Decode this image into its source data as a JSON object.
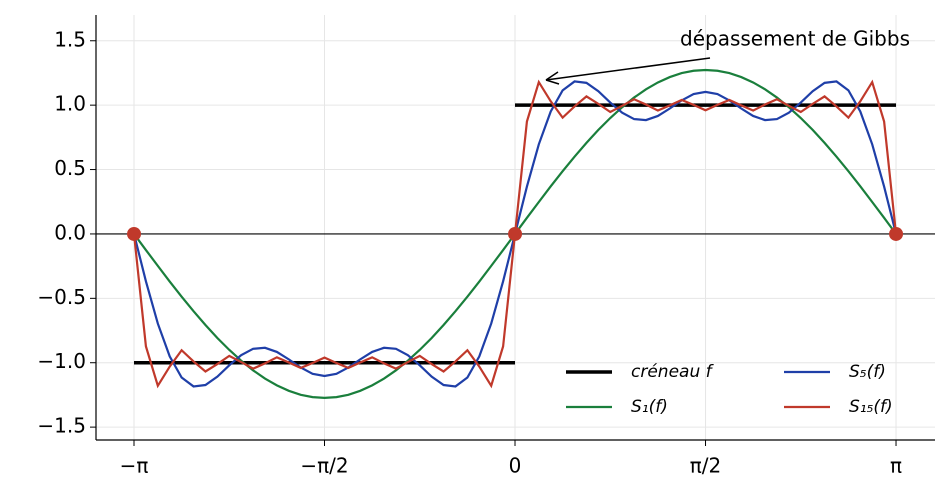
{
  "chart_data": {
    "type": "line",
    "x": [
      -3.1416,
      -3.0434,
      -2.9452,
      -2.8471,
      -2.7489,
      -2.6507,
      -2.5525,
      -2.4544,
      -2.3562,
      -2.258,
      -2.1598,
      -2.0617,
      -1.9635,
      -1.8653,
      -1.7671,
      -1.669,
      -1.5708,
      -1.4726,
      -1.3744,
      -1.2763,
      -1.1781,
      -1.0799,
      -0.9817,
      -0.8836,
      -0.7854,
      -0.6872,
      -0.589,
      -0.4909,
      -0.3927,
      -0.2945,
      -0.1963,
      -0.0982,
      0,
      0.0982,
      0.1963,
      0.2945,
      0.3927,
      0.4909,
      0.589,
      0.6872,
      0.7854,
      0.8836,
      0.9817,
      1.0799,
      1.1781,
      1.2763,
      1.3744,
      1.4726,
      1.5708,
      1.669,
      1.7671,
      1.8653,
      1.9635,
      2.0617,
      2.1598,
      2.258,
      2.3562,
      2.4544,
      2.5525,
      2.6507,
      2.7489,
      2.8471,
      2.9452,
      3.0434,
      3.1416
    ],
    "series": [
      {
        "name": "créneau f",
        "color": "#000000",
        "x": [
          -3.1416,
          0,
          0,
          0,
          3.1416
        ],
        "values": [
          -1,
          -1,
          null,
          1,
          1
        ]
      },
      {
        "name": "S₁(f)",
        "color": "#1a7f3c",
        "values": [
          0,
          -0.125,
          -0.248,
          -0.37,
          -0.487,
          -0.6,
          -0.707,
          -0.808,
          -0.9,
          -0.984,
          -1.059,
          -1.123,
          -1.176,
          -1.218,
          -1.249,
          -1.267,
          -1.273,
          -1.267,
          -1.249,
          -1.218,
          -1.176,
          -1.123,
          -1.059,
          -0.984,
          -0.9,
          -0.808,
          -0.707,
          -0.6,
          -0.487,
          -0.37,
          -0.248,
          -0.125,
          0,
          0.125,
          0.248,
          0.37,
          0.487,
          0.6,
          0.707,
          0.808,
          0.9,
          0.984,
          1.059,
          1.123,
          1.176,
          1.218,
          1.249,
          1.267,
          1.273,
          1.267,
          1.249,
          1.218,
          1.176,
          1.123,
          1.059,
          0.984,
          0.9,
          0.808,
          0.707,
          0.6,
          0.487,
          0.37,
          0.248,
          0.125,
          0
        ]
      },
      {
        "name": "S₅(f)",
        "color": "#1f3fa8",
        "values": [
          0,
          -0.368,
          -0.696,
          -0.951,
          -1.115,
          -1.184,
          -1.173,
          -1.108,
          -1.02,
          -0.941,
          -0.892,
          -0.884,
          -0.916,
          -0.974,
          -1.037,
          -1.086,
          -1.103,
          -1.086,
          -1.037,
          -0.974,
          -0.916,
          -0.884,
          -0.892,
          -0.941,
          -1.02,
          -1.108,
          -1.173,
          -1.184,
          -1.115,
          -0.951,
          -0.696,
          -0.368,
          0,
          0.368,
          0.696,
          0.951,
          1.115,
          1.184,
          1.173,
          1.108,
          1.02,
          0.941,
          0.892,
          0.884,
          0.916,
          0.974,
          1.037,
          1.086,
          1.103,
          1.086,
          1.037,
          0.974,
          0.916,
          0.884,
          0.892,
          0.941,
          1.02,
          1.108,
          1.173,
          1.184,
          1.115,
          0.951,
          0.696,
          0.368,
          0
        ]
      },
      {
        "name": "S₁₅(f)",
        "color": "#c0392b",
        "values": [
          0,
          -0.873,
          -1.179,
          -1.03,
          -0.903,
          -0.99,
          -1.068,
          -1.01,
          -0.947,
          -0.995,
          -1.046,
          -1.005,
          -0.958,
          -0.998,
          -1.04,
          -1.002,
          -0.96,
          -1.002,
          -1.04,
          -0.998,
          -0.958,
          -1.005,
          -1.046,
          -0.995,
          -0.947,
          -1.01,
          -1.068,
          -0.99,
          -0.903,
          -1.03,
          -1.179,
          -0.873,
          0,
          0.873,
          1.179,
          1.03,
          0.903,
          0.99,
          1.068,
          1.01,
          0.947,
          0.995,
          1.046,
          1.005,
          0.958,
          0.998,
          1.04,
          1.002,
          0.96,
          1.002,
          1.04,
          0.998,
          0.958,
          1.005,
          1.046,
          0.995,
          0.947,
          1.01,
          1.068,
          0.99,
          0.903,
          1.03,
          1.179,
          0.873,
          0
        ]
      }
    ],
    "points": {
      "x": [
        -3.1416,
        0,
        3.1416
      ],
      "values": [
        0,
        0,
        0
      ],
      "color": "#c0392b"
    },
    "annotation": "dépassement de Gibbs",
    "xlim": [
      -3.455,
      3.463
    ],
    "ylim": [
      -1.6,
      1.7
    ],
    "xticks": [
      {
        "value": -3.1416,
        "label": "−π"
      },
      {
        "value": -1.5708,
        "label": "−π/2"
      },
      0,
      {
        "value": 1.5708,
        "label": "π/2"
      },
      {
        "value": 3.1416,
        "label": "π"
      }
    ],
    "yticks": [
      {
        "value": -1.5,
        "label": "−1.5"
      },
      {
        "value": -1.0,
        "label": "−1.0"
      },
      {
        "value": -0.5,
        "label": "−0.5"
      },
      {
        "value": 0,
        "label": "0.0"
      },
      0.5,
      {
        "value": 1.0,
        "label": "1.0"
      },
      1.5
    ],
    "grid": true,
    "legend": "lower right"
  }
}
